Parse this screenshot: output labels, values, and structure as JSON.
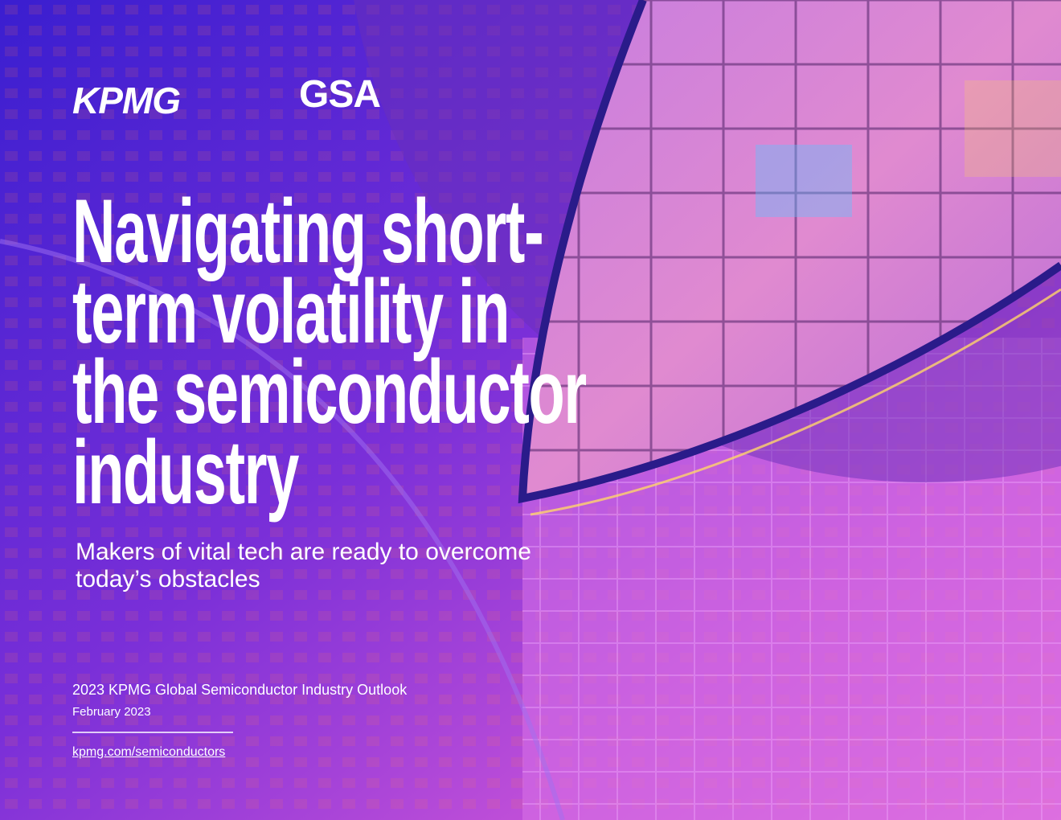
{
  "logos": [
    "KPMG",
    "GSA"
  ],
  "title_lines": [
    "Navigating short-",
    "term volatility in",
    "the semiconductor",
    "industry"
  ],
  "subtitle_lines": [
    "Makers of vital tech are ready to overcome",
    "today’s obstacles"
  ],
  "report_name": "2023 KPMG Global Semiconductor Industry Outlook",
  "date": "February 2023",
  "link": "kpmg.com/semiconductors"
}
